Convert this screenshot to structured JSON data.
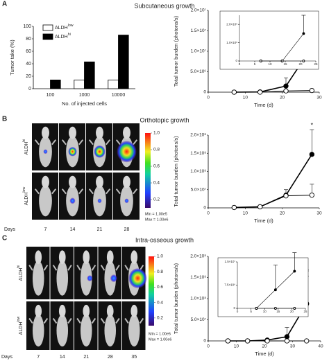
{
  "figure": {
    "panels": [
      {
        "label": "A",
        "title": "Subcutaneous growth"
      },
      {
        "label": "B",
        "title": "Orthotopic growth",
        "images": {
          "rows": [
            {
              "name": "ALDH",
              "sup": "hi"
            },
            {
              "name": "ALDH",
              "sup": "low"
            }
          ],
          "days_label": "Days",
          "days": [
            "7",
            "14",
            "21",
            "28"
          ],
          "colorbar": {
            "lim": [
              0.1,
              1.0
            ],
            "ticks": [
              0.2,
              0.4,
              0.6,
              0.8,
              {
                "value": 1.0,
                "label": "1.0"
              }
            ]
          },
          "min_text": "Min = 1.00e5",
          "max_text": "Max = 1.00e6"
        }
      },
      {
        "label": "C",
        "title": "Intra-osseous growth",
        "images": {
          "rows": [
            {
              "name": "ALDH",
              "sup": "hi"
            },
            {
              "name": "ALDH",
              "sup": "low"
            }
          ],
          "days_label": "Days",
          "days": [
            "7",
            "14",
            "21",
            "28",
            "35"
          ],
          "colorbar": {
            "lim": [
              0.1,
              1.0
            ],
            "ticks": [
              0.2,
              0.4,
              0.6,
              0.8,
              {
                "value": 1.0,
                "label": "1.0"
              }
            ]
          },
          "min_text": "Min = 1.00e5",
          "max_text": "Max = 1.00e6"
        }
      }
    ]
  },
  "chart_data": [
    {
      "type": "bar",
      "xlabel": "No. of injected cells",
      "ylabel": "Tumor take (%)",
      "categories": [
        "100",
        "1000",
        "10000"
      ],
      "ylim": [
        0,
        100
      ],
      "yticks": [
        0,
        20,
        40,
        60,
        80,
        100
      ],
      "series": [
        {
          "name": "ALDH",
          "sup": "low",
          "color": "#ffffff",
          "values": [
            0,
            14,
            14
          ]
        },
        {
          "name": "ALDH",
          "sup": "hi",
          "color": "#000000",
          "values": [
            14,
            43,
            86
          ]
        }
      ]
    },
    {
      "type": "line",
      "xlabel": "Time (d)",
      "ylabel": "Total tumor burden (photons/s)",
      "xlim": [
        0,
        30
      ],
      "xticks": [
        0,
        10,
        20,
        30
      ],
      "ylim": [
        0,
        20000000
      ],
      "yticks": [
        0,
        {
          "value": 5000000,
          "label": "5.0×10⁶"
        },
        {
          "value": 10000000,
          "label": "1.0×10⁷"
        },
        {
          "value": 15000000,
          "label": "1.5×10⁷"
        },
        {
          "value": 20000000,
          "label": "2.0×10⁷"
        }
      ],
      "series": [
        {
          "color": "#000000",
          "marker_fill": "#000000",
          "x": [
            7,
            14,
            21,
            28
          ],
          "values": [
            0,
            50000,
            1500000,
            11000000
          ],
          "errors": [
            0,
            0,
            2000000,
            6000000
          ]
        },
        {
          "color": "#000000",
          "marker_fill": "#ffffff",
          "x": [
            7,
            14,
            21,
            28
          ],
          "values": [
            0,
            0,
            300000,
            400000
          ],
          "errors": [
            0,
            0,
            1000000,
            0
          ]
        }
      ],
      "annotations": [
        {
          "text": "*",
          "x": 28
        }
      ]
    },
    {
      "type": "line",
      "xlim": [
        0,
        25
      ],
      "xticks": [
        0,
        5,
        10,
        15,
        20,
        25
      ],
      "ylim": [
        0,
        2500000
      ],
      "yticks": [
        0,
        {
          "value": 1000000,
          "label": "1.0×10⁶"
        },
        {
          "value": 2000000,
          "label": "2.0×10⁶"
        }
      ],
      "series": [
        {
          "color": "#000000",
          "marker_fill": "#000000",
          "x": [
            7,
            14,
            21
          ],
          "values": [
            0,
            0,
            1500000
          ],
          "errors": [
            0,
            0,
            1000000
          ]
        },
        {
          "color": "#000000",
          "marker_fill": "#ffffff",
          "x": [
            7,
            14,
            21
          ],
          "values": [
            0,
            0,
            0
          ]
        }
      ]
    },
    {
      "type": "line",
      "xlabel": "Time (d)",
      "ylabel": "Total tumor burden (photons/s)",
      "xlim": [
        0,
        30
      ],
      "xticks": [
        0,
        10,
        20,
        30
      ],
      "ylim": [
        0,
        200000000
      ],
      "yticks": [
        0,
        {
          "value": 50000000,
          "label": "5.0×10⁷"
        },
        {
          "value": 100000000,
          "label": "1.0×10⁸"
        },
        {
          "value": 150000000,
          "label": "1.5×10⁸"
        },
        {
          "value": 200000000,
          "label": "2.0×10⁸"
        }
      ],
      "series": [
        {
          "color": "#000000",
          "marker_fill": "#000000",
          "x": [
            7,
            14,
            21,
            28
          ],
          "values": [
            1000000,
            3000000,
            35000000,
            147000000
          ],
          "errors": [
            0,
            1000000,
            15000000,
            68000000
          ]
        },
        {
          "color": "#000000",
          "marker_fill": "#ffffff",
          "x": [
            7,
            14,
            21,
            28
          ],
          "values": [
            1000000,
            3000000,
            33000000,
            35000000
          ],
          "errors": [
            0,
            1000000,
            5000000,
            30000000
          ]
        }
      ],
      "annotations": [
        {
          "text": "*",
          "x": 28
        }
      ]
    },
    {
      "type": "line",
      "xlabel": "Time (d)",
      "ylabel": "Total tumor burden (photons/s)",
      "xlim": [
        0,
        40
      ],
      "xticks": [
        0,
        10,
        20,
        30,
        40
      ],
      "ylim": [
        0,
        200000000
      ],
      "yticks": [
        0,
        {
          "value": 50000000,
          "label": "5.0×10⁷"
        },
        {
          "value": 100000000,
          "label": "1.0×10⁸"
        },
        {
          "value": 150000000,
          "label": "1.5×10⁸"
        },
        {
          "value": 200000000,
          "label": "2.0×10⁸"
        }
      ],
      "series": [
        {
          "color": "#000000",
          "marker_fill": "#000000",
          "x": [
            7,
            14,
            21,
            28,
            35
          ],
          "values": [
            0,
            0,
            2000000,
            10000000,
            88000000
          ],
          "errors": [
            0,
            0,
            1000000,
            22000000,
            65000000
          ]
        },
        {
          "color": "#000000",
          "marker_fill": "#ffffff",
          "x": [
            7,
            14,
            21,
            28,
            35
          ],
          "values": [
            0,
            0,
            0,
            0,
            0
          ]
        }
      ],
      "annotations": [
        {
          "text": "**",
          "x": 35
        }
      ]
    },
    {
      "type": "line",
      "xlim": [
        0,
        25
      ],
      "xticks": [
        0,
        5,
        10,
        15,
        20,
        25
      ],
      "ylim": [
        0,
        15000000
      ],
      "yticks": [
        0,
        {
          "value": 7500000,
          "label": "7.5×10⁶"
        },
        {
          "value": 15000000,
          "label": "1.5×10⁷"
        }
      ],
      "series": [
        {
          "color": "#000000",
          "marker_fill": "#000000",
          "x": [
            7,
            14,
            21
          ],
          "values": [
            0,
            6000000,
            12000000
          ],
          "errors": [
            0,
            8000000,
            6000000
          ]
        },
        {
          "color": "#000000",
          "marker_fill": "#ffffff",
          "x": [
            7,
            14,
            21
          ],
          "values": [
            0,
            0,
            0
          ]
        }
      ]
    }
  ]
}
